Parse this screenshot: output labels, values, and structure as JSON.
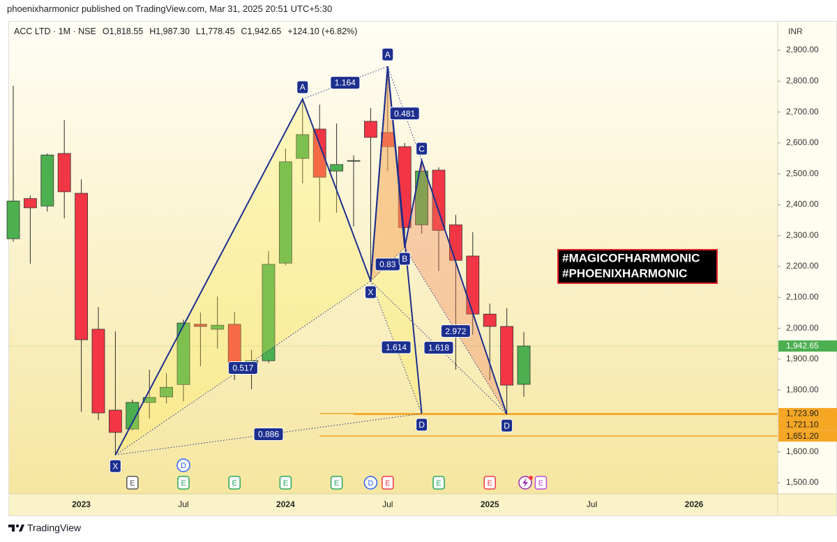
{
  "header": {
    "publisher": "phoenixharmonicr published on TradingView.com, Mar 31, 2025 20:51 UTC+5:30"
  },
  "footer": {
    "brand": "TradingView"
  },
  "chart_data": {
    "type": "candlestick",
    "legend": {
      "symbol": "ACC LTD · 1M · NSE",
      "open": "O1,818.55",
      "high": "H1,987.30",
      "low": "L1,778.45",
      "close": "C1,942.65",
      "change": "+124.10 (+6.82%)"
    },
    "currency": "INR",
    "categories": [
      null,
      null,
      null,
      null,
      "2023",
      null,
      null,
      null,
      null,
      null,
      "Jul",
      null,
      null,
      null,
      null,
      null,
      "2024",
      null,
      null,
      null,
      null,
      null,
      "Jul",
      null,
      null,
      null,
      null,
      null,
      "2025",
      null,
      null,
      null,
      null,
      null,
      "Jul",
      null,
      null,
      null,
      null,
      null,
      "2026",
      null,
      null,
      null,
      null
    ],
    "open": [
      2290,
      2420,
      2396,
      2566,
      2437,
      1997,
      1735,
      1674,
      1760,
      1778,
      1818,
      2013,
      1997,
      2013,
      1880,
      1895,
      2211,
      2550,
      2645,
      2509,
      2541,
      2670,
      2634,
      2588,
      2335,
      2512,
      2335,
      2234,
      2046,
      2006,
      1818.55,
      null,
      null,
      null,
      null,
      null,
      null,
      null,
      null,
      null,
      null,
      null,
      null,
      null,
      null
    ],
    "high": [
      2785,
      2430,
      2566,
      2674,
      2482,
      2069,
      1990,
      1769,
      1866,
      1855,
      2028,
      2051,
      2103,
      2053,
      1930,
      2250,
      2582,
      2742,
      2724,
      2663,
      2560,
      2713,
      2848,
      2600,
      2543,
      2521,
      2367,
      2311,
      2080,
      2065,
      1987.3,
      null,
      null,
      null,
      null,
      null,
      null,
      null,
      null,
      null,
      null,
      null,
      null,
      null,
      null
    ],
    "low": [
      2280,
      2209,
      2378,
      2356,
      1730,
      1703,
      1590,
      1669,
      1708,
      1757,
      1764,
      1877,
      1934,
      1832,
      1803,
      1888,
      2204,
      2469,
      2345,
      2374,
      2329,
      2153,
      2509,
      2261,
      2306,
      2186,
      1866,
      1979,
      1832,
      1721.1,
      1778.45,
      null,
      null,
      null,
      null,
      null,
      null,
      null,
      null,
      null,
      null,
      null,
      null,
      null,
      null
    ],
    "close": [
      2412,
      2390,
      2561,
      2442,
      1963,
      1726,
      1663,
      1760,
      1776,
      1809,
      2017,
      2006,
      2010,
      1888,
      1895,
      2207,
      2539,
      2627,
      2489,
      2530,
      2543,
      2618,
      2588,
      2326,
      2509,
      2317,
      2220,
      2046,
      2006,
      1816,
      1942.65,
      null,
      null,
      null,
      null,
      null,
      null,
      null,
      null,
      null,
      null,
      null,
      null,
      null,
      null
    ],
    "up_color": "#4caf50",
    "down_color": "#f23645",
    "ylim": [
      1464,
      2995
    ],
    "yticks": [
      {
        "value": 1500,
        "label": "1,500.00"
      },
      {
        "value": 1600,
        "label": "1,600.00"
      },
      {
        "value": 1700,
        "label": "1,700.00"
      },
      {
        "value": 1800,
        "label": "1,800.00"
      },
      {
        "value": 1900,
        "label": "1,900.00"
      },
      {
        "value": 2000,
        "label": "2,000.00"
      },
      {
        "value": 2100,
        "label": "2,100.00"
      },
      {
        "value": 2200,
        "label": "2,200.00"
      },
      {
        "value": 2300,
        "label": "2,300.00"
      },
      {
        "value": 2400,
        "label": "2,400.00"
      },
      {
        "value": 2500,
        "label": "2,500.00"
      },
      {
        "value": 2600,
        "label": "2,600.00"
      },
      {
        "value": 2700,
        "label": "2,700.00"
      },
      {
        "value": 2800,
        "label": "2,800.00"
      },
      {
        "value": 2900,
        "label": "2,900.00"
      }
    ],
    "grid": false,
    "last_price": {
      "value": 1942.65,
      "label": "1,942.65",
      "color": "#4caf50"
    },
    "price_levels": [
      {
        "value": 1723.9,
        "label": "1,723.90",
        "x0": 18
      },
      {
        "value": 1721.1,
        "label": "1,721.10",
        "x0": 20
      },
      {
        "value": 1651.2,
        "label": "1,651.20",
        "x0": 18
      }
    ],
    "level_color": "#f5a623",
    "patterns": [
      {
        "points": [
          {
            "label": "X",
            "x": 6,
            "price": 1590
          },
          {
            "label": "A",
            "x": 17,
            "price": 2742
          },
          {
            "label": null,
            "x": 21,
            "price": 2153
          },
          {
            "label": null,
            "x": 22,
            "price": 2848
          },
          {
            "label": "D",
            "x": 24,
            "price": 1723.9
          }
        ],
        "ratios": [
          0.517,
          1.164,
          1.614,
          0.886
        ],
        "shade": "rgba(255,236,80,0.28)"
      },
      {
        "points": [
          {
            "label": "X",
            "x": 21,
            "price": 2153
          },
          {
            "label": "A",
            "x": 22,
            "price": 2848
          },
          {
            "label": "B",
            "x": 23,
            "price": 2261
          },
          {
            "label": "C",
            "x": 24,
            "price": 2543
          },
          {
            "label": "D",
            "x": 29,
            "price": 1721.1
          }
        ],
        "ratios": [
          0.83,
          0.481,
          2.972,
          1.618
        ],
        "shade": "rgba(240,130,90,0.35)"
      }
    ],
    "pattern_color": "#1c2f8f",
    "tags": [
      "#MAGICOFHARMMONIC",
      "#PHOENIXHARMONIC"
    ],
    "events": [
      {
        "x": 7,
        "label": "E",
        "color": "#555555"
      },
      {
        "x": 10,
        "label": "E",
        "color": "#26a65b"
      },
      {
        "x": 10,
        "label": "D",
        "color": "#2962ff"
      },
      {
        "x": 13,
        "label": "E",
        "color": "#26a65b"
      },
      {
        "x": 16,
        "label": "E",
        "color": "#26a65b"
      },
      {
        "x": 19,
        "label": "E",
        "color": "#26a65b"
      },
      {
        "x": 21,
        "label": "D",
        "color": "#2962ff"
      },
      {
        "x": 22,
        "label": "E",
        "color": "#f23645"
      },
      {
        "x": 25,
        "label": "E",
        "color": "#26a65b"
      },
      {
        "x": 28,
        "label": "E",
        "color": "#f23645"
      },
      {
        "x": 31,
        "label": "E",
        "color": "#c04bd8"
      }
    ]
  }
}
